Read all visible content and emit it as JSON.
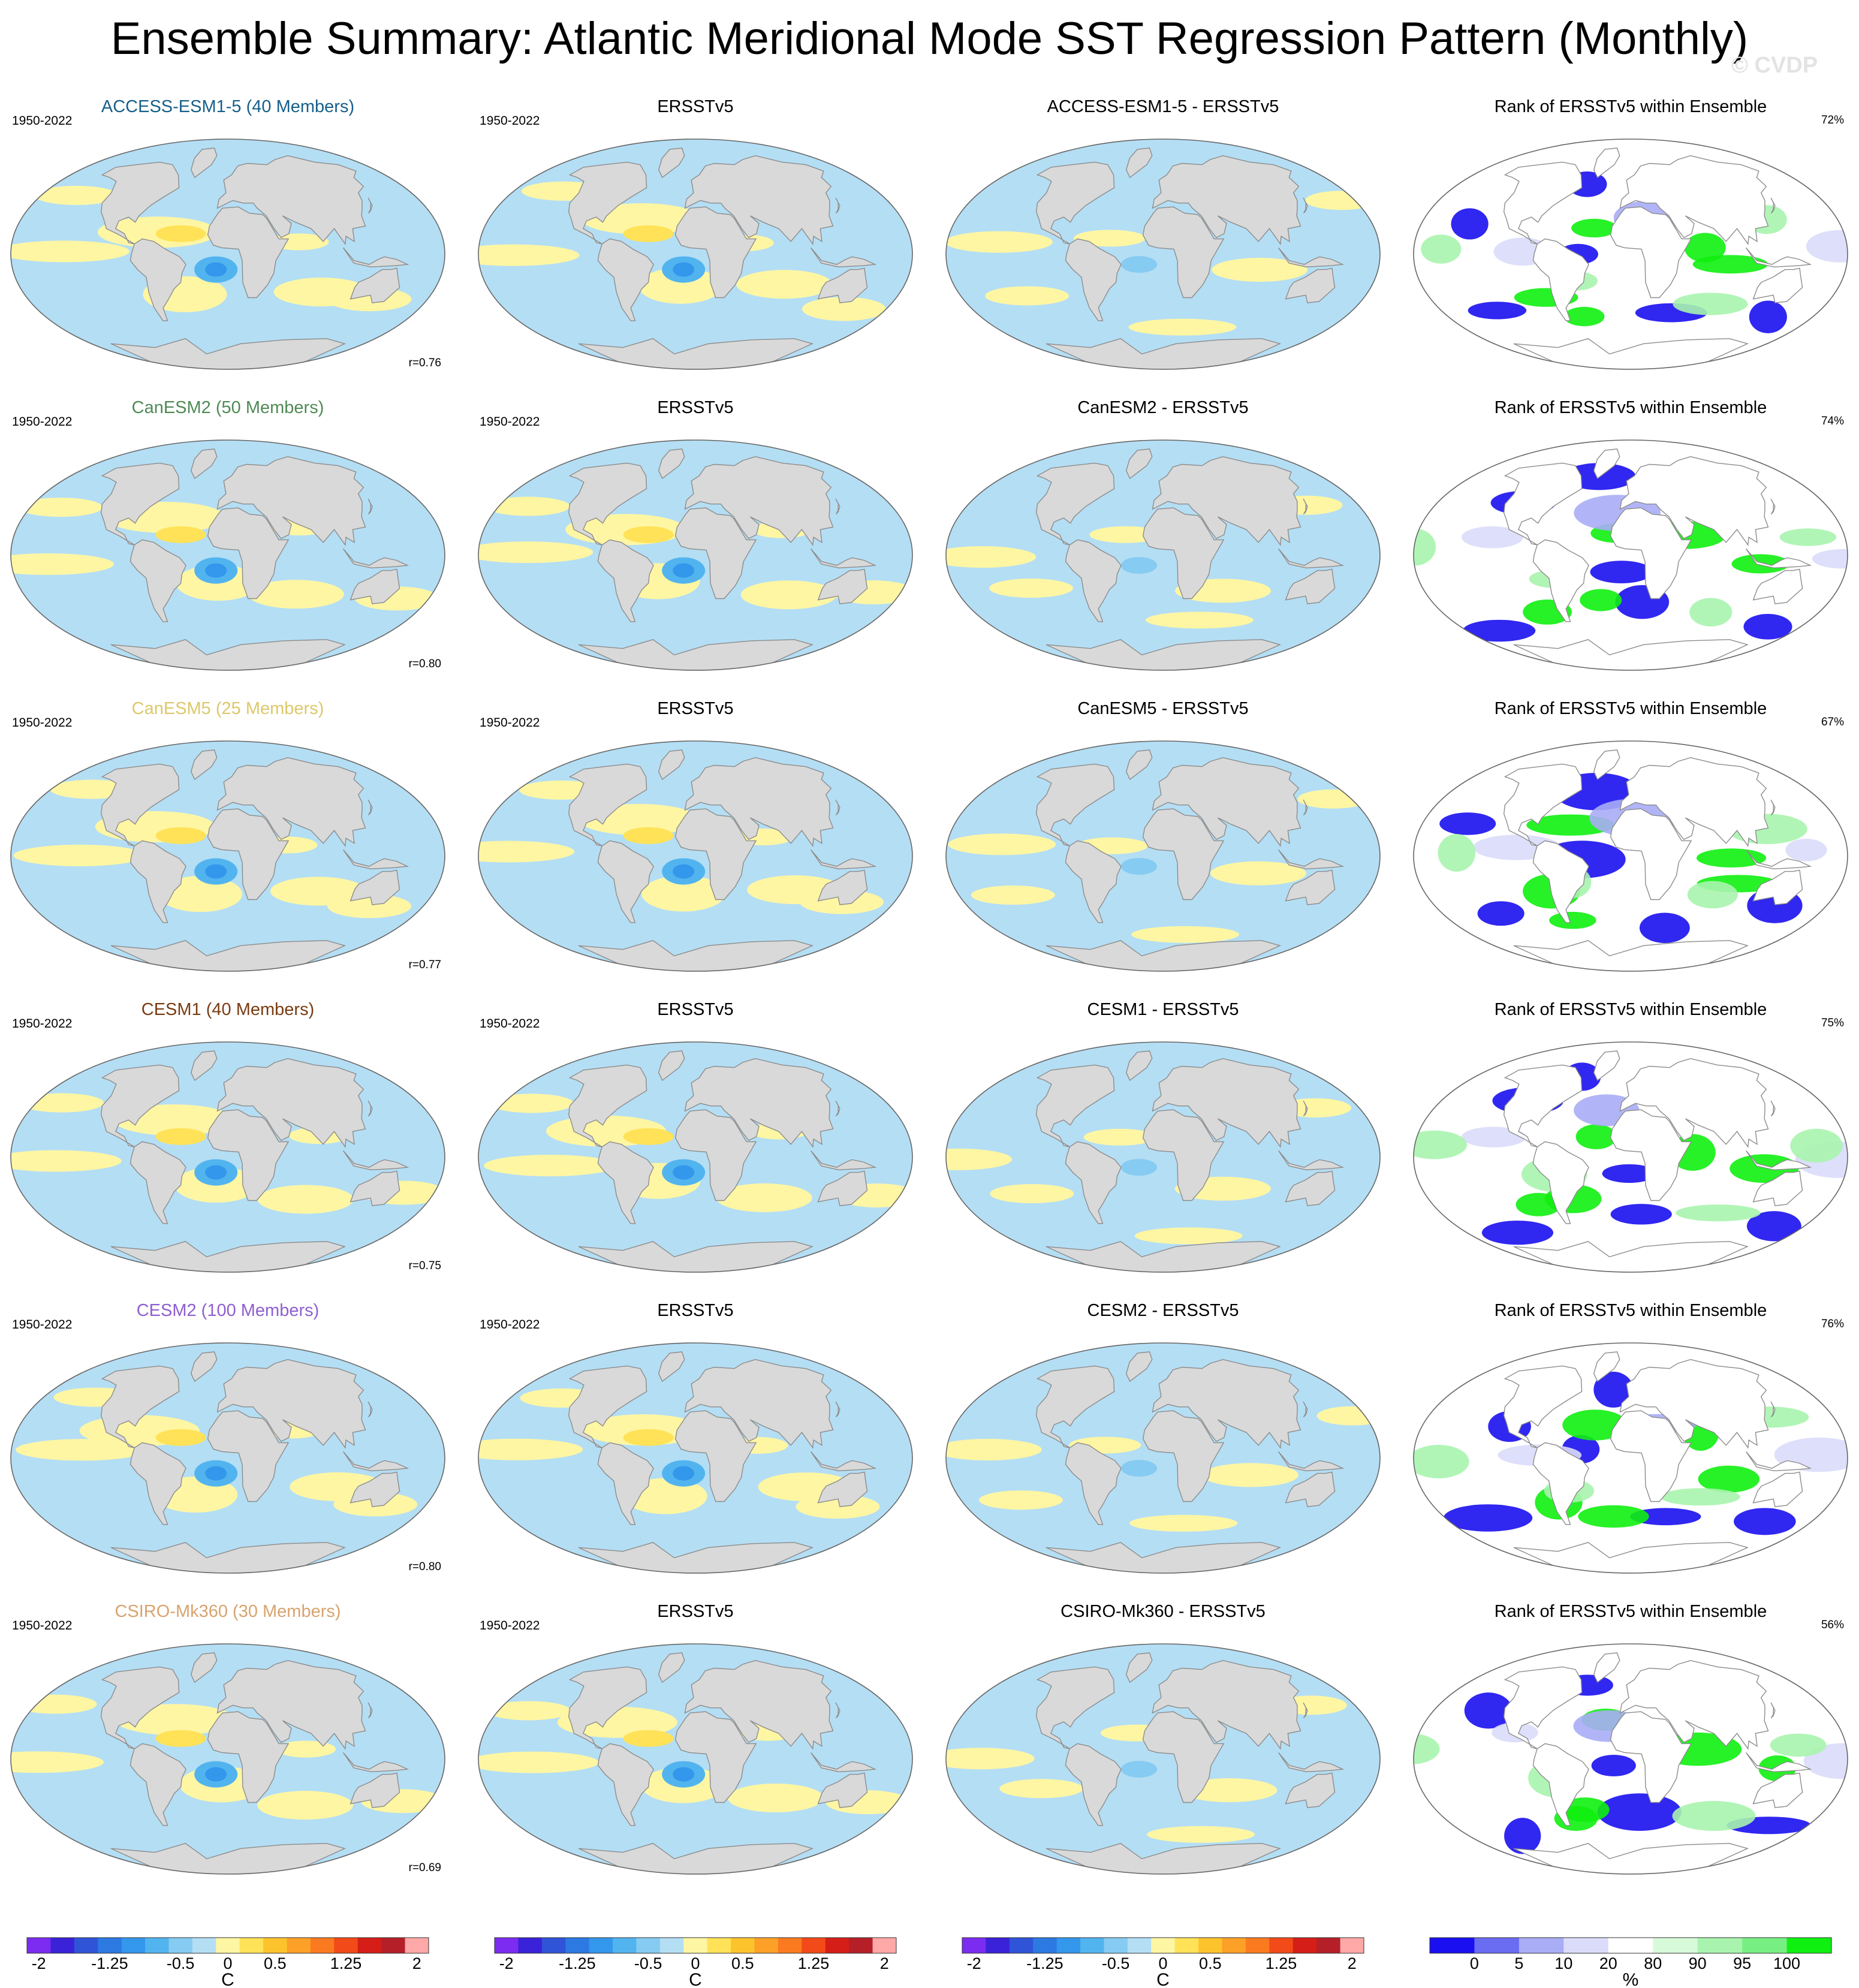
{
  "title": "Ensemble Summary: Atlantic Meridional Mode SST Regression Pattern (Monthly)",
  "watermark": "© CVDP",
  "colors": {
    "sst_scale": [
      "#7b2cf0",
      "#3a22d8",
      "#2f54d8",
      "#2c79e2",
      "#3397ec",
      "#52b4ef",
      "#86cbf1",
      "#b4def4",
      "#fff6a3",
      "#ffe257",
      "#fdc32d",
      "#fca027",
      "#fb7a20",
      "#f24a18",
      "#d41e17",
      "#b51f28",
      "#ffa8a8"
    ],
    "rank_scale": [
      "#1a0ff0",
      "#6a6cf2",
      "#a8adf6",
      "#dadcf9",
      "#ffffff",
      "#d7fad9",
      "#a8f4ae",
      "#78ef83",
      "#0ff010"
    ],
    "land": "#d9d9d9",
    "coast": "#8c8c8c",
    "title_colors": {
      "ACCESS-ESM1-5": "#17608a",
      "CanESM2": "#4f8a56",
      "CanESM5": "#ddc86b",
      "CESM1": "#7a3c12",
      "CESM2": "#8e5fd0",
      "CSIRO-Mk360": "#d8a36f"
    }
  },
  "rows": [
    {
      "model": "ACCESS-ESM1-5",
      "model_title": "ACCESS-ESM1-5 (40 Members)",
      "diff_title": "ACCESS-ESM1-5 - ERSSTv5",
      "period": "1950-2022",
      "obs_title": "ERSSTv5",
      "rank_title": "Rank of ERSSTv5 within Ensemble",
      "rank_pct": "72%",
      "pattern_corr": "r=0.76"
    },
    {
      "model": "CanESM2",
      "model_title": "CanESM2 (50 Members)",
      "diff_title": "CanESM2 - ERSSTv5",
      "period": "1950-2022",
      "obs_title": "ERSSTv5",
      "rank_title": "Rank of ERSSTv5 within Ensemble",
      "rank_pct": "74%",
      "pattern_corr": "r=0.80"
    },
    {
      "model": "CanESM5",
      "model_title": "CanESM5 (25 Members)",
      "diff_title": "CanESM5 - ERSSTv5",
      "period": "1950-2022",
      "obs_title": "ERSSTv5",
      "rank_title": "Rank of ERSSTv5 within Ensemble",
      "rank_pct": "67%",
      "pattern_corr": "r=0.77"
    },
    {
      "model": "CESM1",
      "model_title": "CESM1 (40 Members)",
      "diff_title": "CESM1 - ERSSTv5",
      "period": "1950-2022",
      "obs_title": "ERSSTv5",
      "rank_title": "Rank of ERSSTv5 within Ensemble",
      "rank_pct": "75%",
      "pattern_corr": "r=0.75"
    },
    {
      "model": "CESM2",
      "model_title": "CESM2 (100 Members)",
      "diff_title": "CESM2 - ERSSTv5",
      "period": "1950-2022",
      "obs_title": "ERSSTv5",
      "rank_title": "Rank of ERSSTv5 within Ensemble",
      "rank_pct": "76%",
      "pattern_corr": "r=0.80"
    },
    {
      "model": "CSIRO-Mk360",
      "model_title": "CSIRO-Mk360 (30 Members)",
      "diff_title": "CSIRO-Mk360 - ERSSTv5",
      "period": "1950-2022",
      "obs_title": "ERSSTv5",
      "rank_title": "Rank of ERSSTv5 within Ensemble",
      "rank_pct": "56%",
      "pattern_corr": "r=0.69"
    }
  ],
  "colorbars": {
    "sst": {
      "tick_labels": [
        "-2",
        "-1.25",
        "-0.5",
        "0",
        "0.5",
        "1.25",
        "2"
      ],
      "tick_values": [
        -2,
        -1.25,
        -0.5,
        0,
        0.5,
        1.25,
        2
      ],
      "unit": "C",
      "count": 3
    },
    "rank": {
      "tick_labels": [
        "0",
        "5",
        "10",
        "20",
        "80",
        "90",
        "95",
        "100"
      ],
      "unit": "%"
    }
  }
}
